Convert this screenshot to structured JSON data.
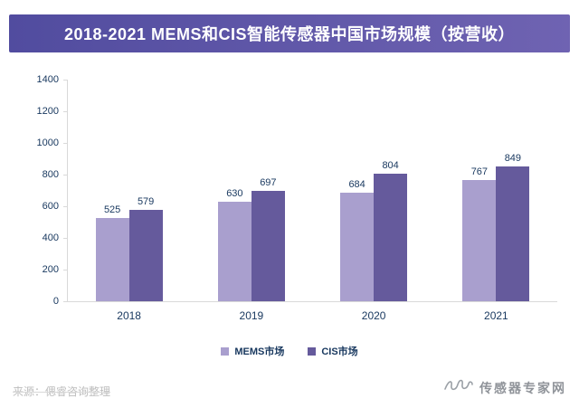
{
  "title": "2018-2021 MEMS和CIS智能传感器中国市场规模（按营收）",
  "source": "来源：偲睿咨询整理",
  "watermark": "传感器专家网",
  "colors": {
    "banner_left": "#514c9f",
    "banner_right": "#6f63b2",
    "mems_bar": "#a99fce",
    "cis_bar": "#655a9c",
    "axis_line": "#d9d9d9",
    "label_text": "#17375e"
  },
  "chart_data": {
    "type": "bar",
    "title": "2018-2021 MEMS和CIS智能传感器中国市场规模（按营收）",
    "categories": [
      "2018",
      "2019",
      "2020",
      "2021"
    ],
    "series": [
      {
        "name": "MEMS市场",
        "color": "#a99fce",
        "values": [
          525,
          630,
          684,
          767
        ]
      },
      {
        "name": "CIS市场",
        "color": "#655a9c",
        "values": [
          579,
          697,
          804,
          849
        ]
      }
    ],
    "xlabel": "",
    "ylabel": "",
    "ylim": [
      0,
      1400
    ],
    "yticks": [
      0,
      200,
      400,
      600,
      800,
      1000,
      1200,
      1400
    ],
    "grid": false,
    "legend_position": "bottom"
  }
}
